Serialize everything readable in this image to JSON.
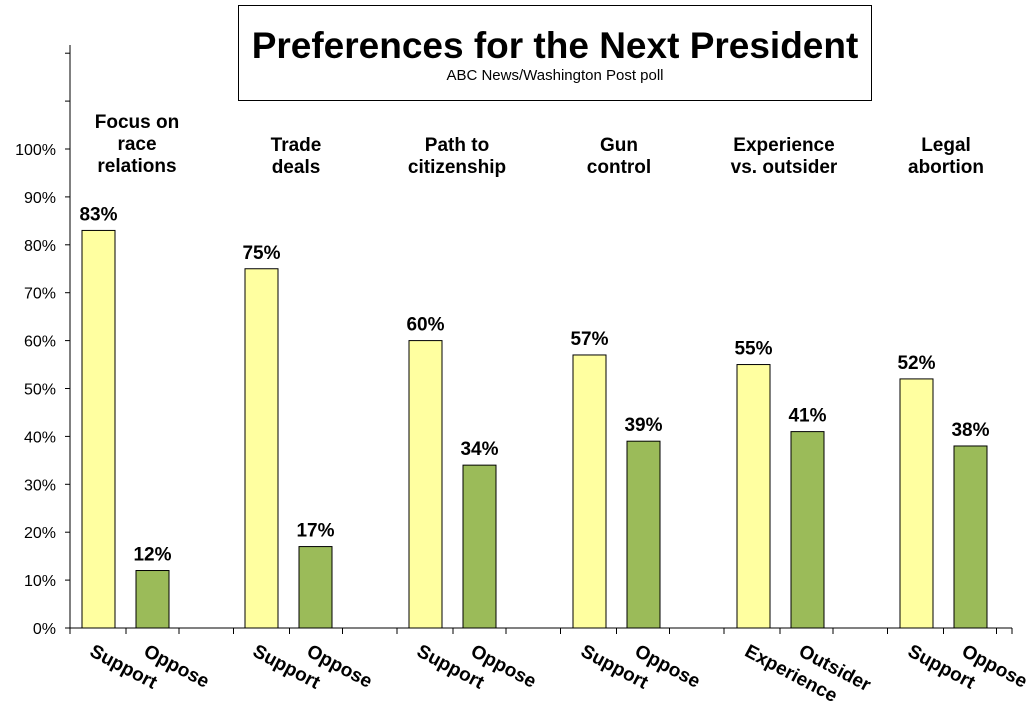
{
  "title": "Preferences for the Next President",
  "subtitle": "ABC News/Washington  Post poll",
  "chart_data": {
    "type": "bar",
    "title": "Preferences for the Next President",
    "subtitle": "ABC News/Washington  Post poll",
    "ylim": [
      0,
      100
    ],
    "y_ticks": [
      "0%",
      "10%",
      "20%",
      "30%",
      "40%",
      "50%",
      "60%",
      "70%",
      "80%",
      "90%",
      "100%"
    ],
    "colors": {
      "first": "#FFFFA0",
      "second": "#9BBB59"
    },
    "groups": [
      {
        "label": [
          "Focus on",
          "race",
          "relations"
        ],
        "bars": [
          {
            "label": "Support",
            "value": 83,
            "data_label": "83%"
          },
          {
            "label": "Oppose",
            "value": 12,
            "data_label": "12%"
          }
        ]
      },
      {
        "label": [
          "Trade",
          "deals"
        ],
        "bars": [
          {
            "label": "Support",
            "value": 75,
            "data_label": "75%"
          },
          {
            "label": "Oppose",
            "value": 17,
            "data_label": "17%"
          }
        ]
      },
      {
        "label": [
          "Path to",
          "citizenship"
        ],
        "bars": [
          {
            "label": "Support",
            "value": 60,
            "data_label": "60%"
          },
          {
            "label": "Oppose",
            "value": 34,
            "data_label": "34%"
          }
        ]
      },
      {
        "label": [
          "Gun",
          "control"
        ],
        "bars": [
          {
            "label": "Support",
            "value": 57,
            "data_label": "57%"
          },
          {
            "label": "Oppose",
            "value": 39,
            "data_label": "39%"
          }
        ]
      },
      {
        "label": [
          "Experience",
          "vs. outsider"
        ],
        "bars": [
          {
            "label": "Experience",
            "value": 55,
            "data_label": "55%"
          },
          {
            "label": "Outsider",
            "value": 41,
            "data_label": "41%"
          }
        ]
      },
      {
        "label": [
          "Legal",
          "abortion"
        ],
        "bars": [
          {
            "label": "Support",
            "value": 52,
            "data_label": "52%"
          },
          {
            "label": "Oppose",
            "value": 38,
            "data_label": "38%"
          }
        ]
      }
    ]
  }
}
